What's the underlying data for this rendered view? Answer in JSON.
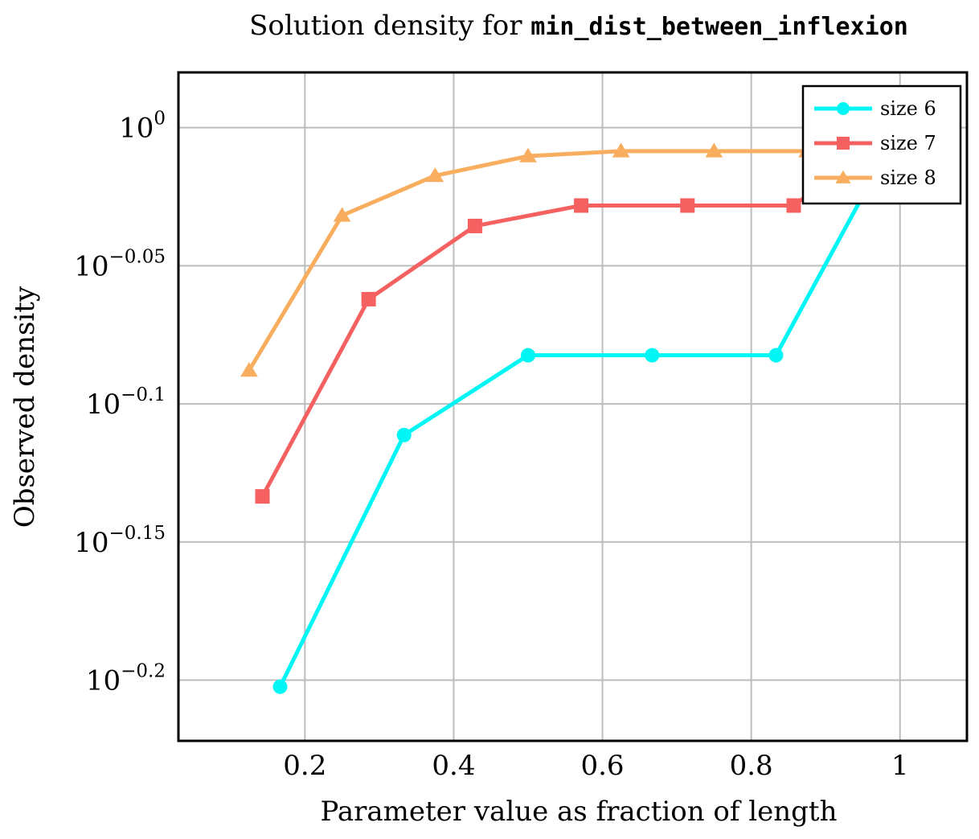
{
  "chart_data": {
    "type": "line",
    "title_prefix": "Solution density for ",
    "title_code": "min_dist_between_inflexion",
    "xlabel": "Parameter value as fraction of length",
    "ylabel": "Observed density",
    "xlim": [
      0.03,
      1.09
    ],
    "ylim_log10": [
      -0.222,
      0.02
    ],
    "y_scale": "log",
    "grid": true,
    "legend_position": "top-right",
    "x_ticks": [
      0.2,
      0.4,
      0.6,
      0.8,
      1
    ],
    "x_tick_labels": [
      "0.2",
      "0.4",
      "0.6",
      "0.8",
      "1"
    ],
    "y_tick_exponents": [
      0,
      -0.05,
      -0.1,
      -0.15,
      -0.2
    ],
    "y_tick_base": "10",
    "y_tick_exponent_labels": [
      "0",
      "−0.05",
      "−0.1",
      "−0.15",
      "−0.2"
    ],
    "series": [
      {
        "name": "size 6",
        "color": "#00f5f5",
        "marker": "circle",
        "x": [
          0.1667,
          0.3333,
          0.5,
          0.6667,
          0.8333,
          1.0
        ],
        "y_log10": [
          -0.2024,
          -0.1113,
          -0.0824,
          -0.0824,
          -0.0824,
          0.0
        ]
      },
      {
        "name": "size 7",
        "color": "#f56060",
        "marker": "square",
        "x": [
          0.1429,
          0.2857,
          0.4286,
          0.5714,
          0.7143,
          0.8571,
          1.0
        ],
        "y_log10": [
          -0.1335,
          -0.0621,
          -0.0356,
          -0.0282,
          -0.0282,
          -0.0282,
          0.0
        ]
      },
      {
        "name": "size 8",
        "color": "#f8ae5e",
        "marker": "triangle",
        "x": [
          0.125,
          0.25,
          0.375,
          0.5,
          0.625,
          0.75,
          0.875,
          1.0
        ],
        "y_log10": [
          -0.0879,
          -0.0318,
          -0.0174,
          -0.0103,
          -0.0085,
          -0.0085,
          -0.0085,
          0.0
        ]
      }
    ]
  }
}
